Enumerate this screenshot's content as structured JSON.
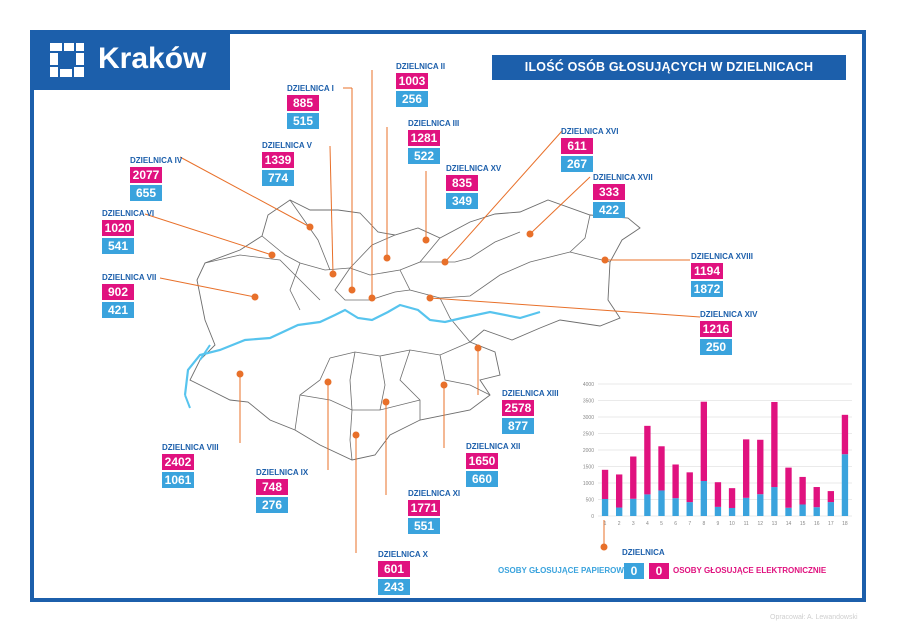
{
  "logo": {
    "name": "Kraków"
  },
  "title": "ILOŚĆ OSÓB GŁOSUJĄCYCH W DZIELNICACH",
  "districts": [
    {
      "name": "DZIELNICA I",
      "electronic": "885",
      "paper": "515"
    },
    {
      "name": "DZIELNICA II",
      "electronic": "1003",
      "paper": "256"
    },
    {
      "name": "DZIELNICA III",
      "electronic": "1281",
      "paper": "522"
    },
    {
      "name": "DZIELNICA IV",
      "electronic": "2077",
      "paper": "655"
    },
    {
      "name": "DZIELNICA V",
      "electronic": "1339",
      "paper": "774"
    },
    {
      "name": "DZIELNICA VI",
      "electronic": "1020",
      "paper": "541"
    },
    {
      "name": "DZIELNICA VII",
      "electronic": "902",
      "paper": "421"
    },
    {
      "name": "DZIELNICA VIII",
      "electronic": "2402",
      "paper": "1061"
    },
    {
      "name": "DZIELNICA IX",
      "electronic": "748",
      "paper": "276"
    },
    {
      "name": "DZIELNICA X",
      "electronic": "601",
      "paper": "243"
    },
    {
      "name": "DZIELNICA XI",
      "electronic": "1771",
      "paper": "551"
    },
    {
      "name": "DZIELNICA XII",
      "electronic": "1650",
      "paper": "660"
    },
    {
      "name": "DZIELNICA XIII",
      "electronic": "2578",
      "paper": "877"
    },
    {
      "name": "DZIELNICA XIV",
      "electronic": "1216",
      "paper": "250"
    },
    {
      "name": "DZIELNICA XV",
      "electronic": "835",
      "paper": "349"
    },
    {
      "name": "DZIELNICA XVI",
      "electronic": "611",
      "paper": "267"
    },
    {
      "name": "DZIELNICA XVII",
      "electronic": "333",
      "paper": "422"
    },
    {
      "name": "DZIELNICA XVIII",
      "electronic": "1194",
      "paper": "1872"
    }
  ],
  "legend": {
    "district_label": "DZIELNICA",
    "paper_label": "OSOBY GŁOSUJĄCE PAPIEROWO",
    "paper_value": "0",
    "electronic_value": "0",
    "electronic_label": "OSOBY GŁOSUJĄCE ELEKTRONICZNIE"
  },
  "credit": "Opracował: A. Lewandowski",
  "colors": {
    "brand": "#1c5fab",
    "electronic": "#e0127f",
    "paper": "#3aa3dd",
    "leader": "#e8702a"
  },
  "chart_data": {
    "type": "bar",
    "stacked": true,
    "categories": [
      "1",
      "2",
      "3",
      "4",
      "5",
      "6",
      "7",
      "8",
      "9",
      "10",
      "11",
      "12",
      "13",
      "14",
      "15",
      "16",
      "17",
      "18"
    ],
    "series": [
      {
        "values": [
          515,
          256,
          522,
          655,
          774,
          541,
          421,
          1061,
          276,
          243,
          551,
          660,
          877,
          250,
          349,
          267,
          422,
          1872
        ]
      },
      {
        "values": [
          885,
          1003,
          1281,
          2077,
          1339,
          1020,
          902,
          2402,
          748,
          601,
          1771,
          1650,
          2578,
          1216,
          835,
          611,
          333,
          1194
        ]
      }
    ],
    "yticks": [
      "0",
      "500",
      "1000",
      "1500",
      "2000",
      "2500",
      "3000",
      "3500",
      "4000"
    ],
    "ylim": [
      0,
      4000
    ]
  }
}
